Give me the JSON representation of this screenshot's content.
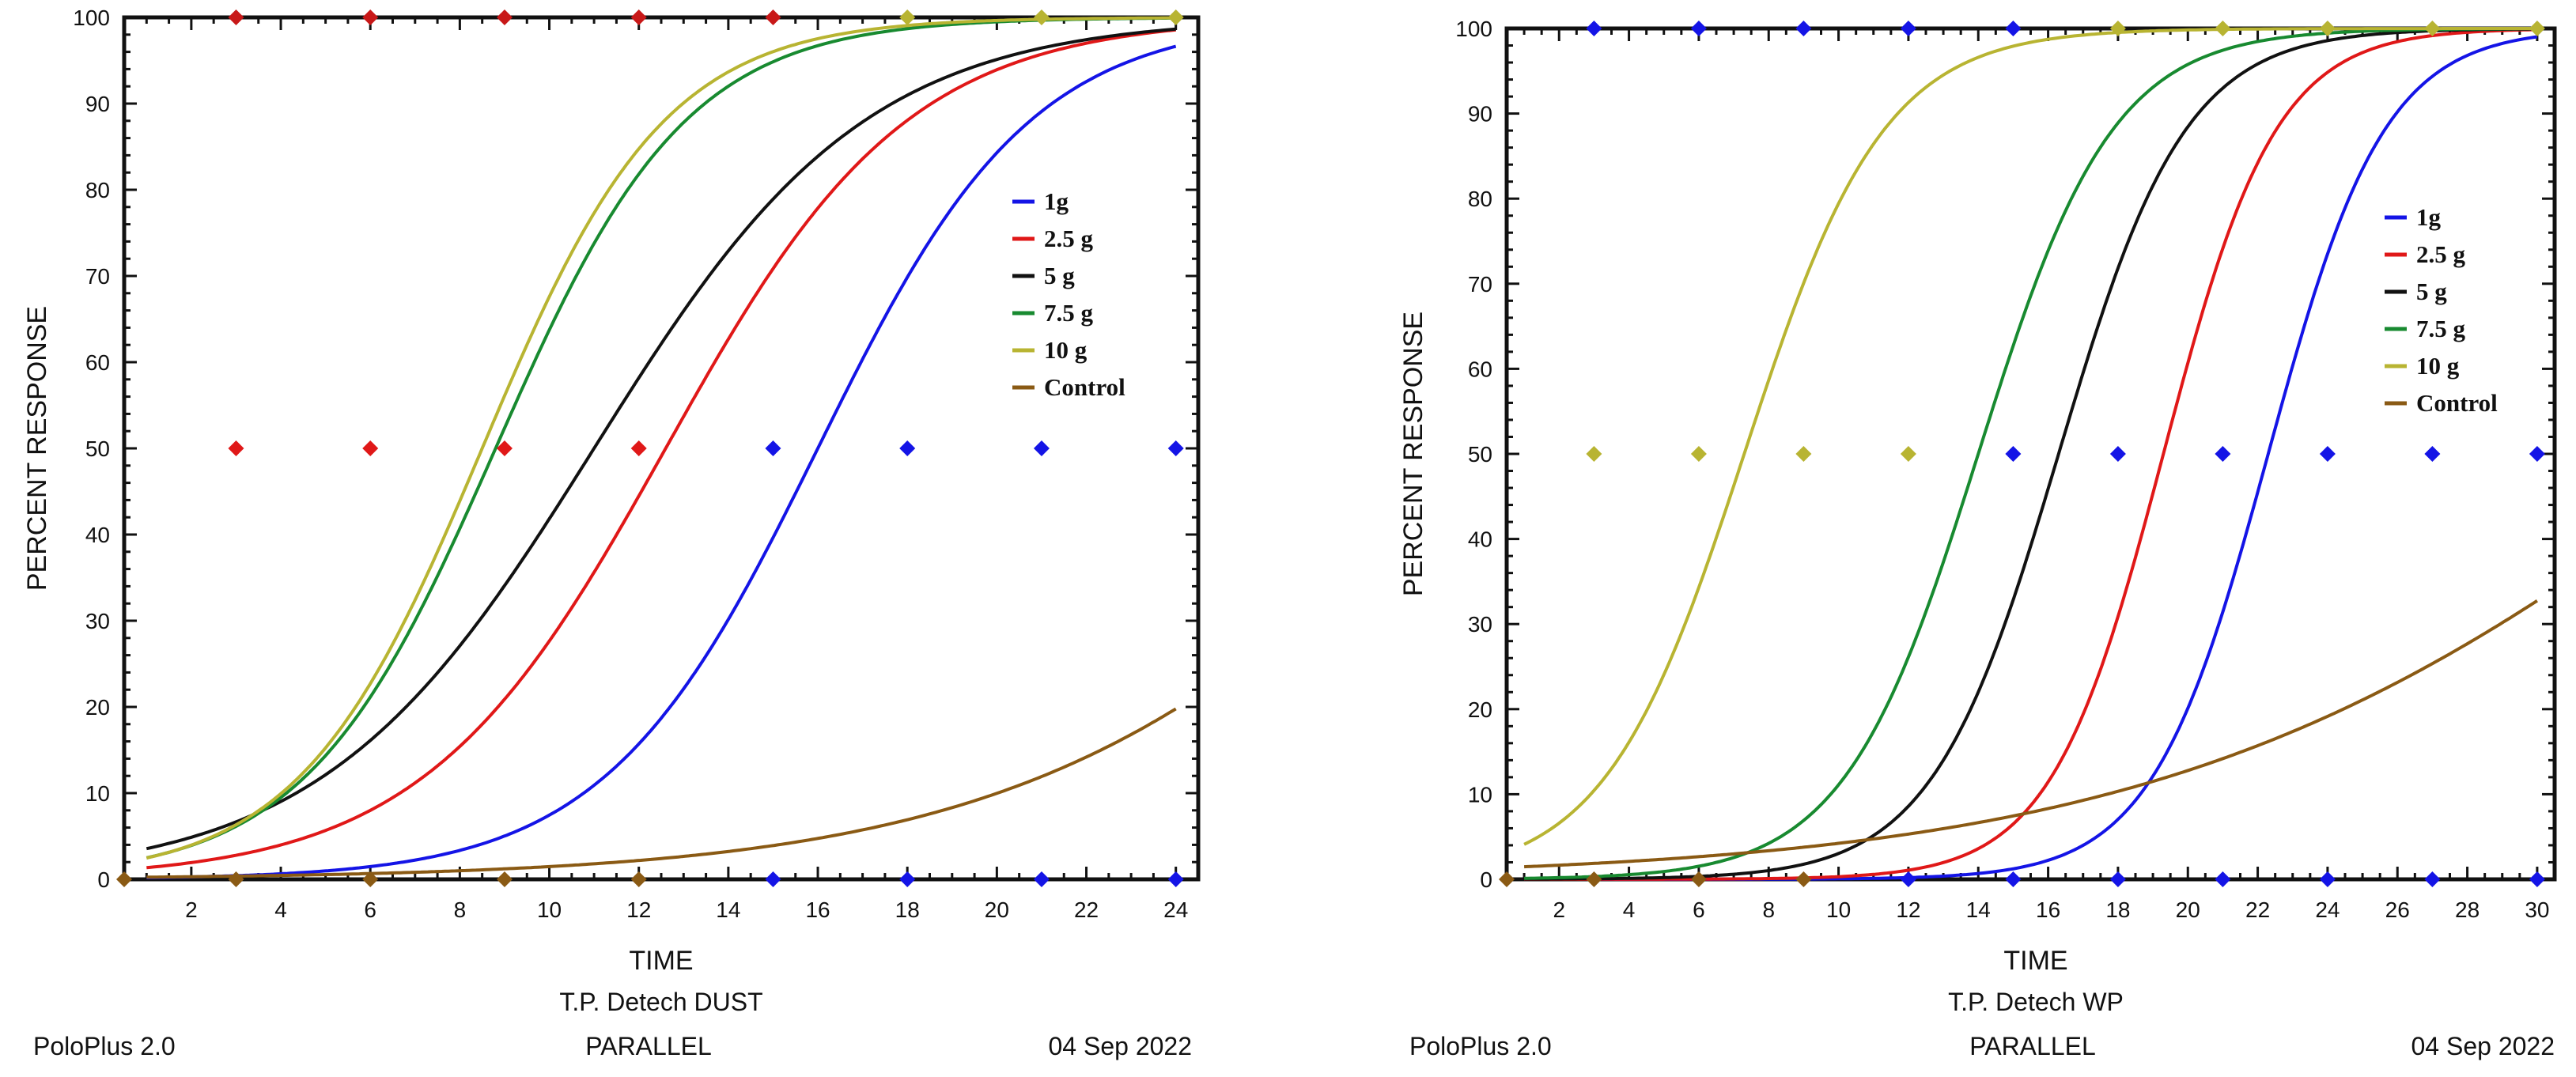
{
  "charts": [
    {
      "type": "line",
      "title": "T.P. Detech DUST",
      "xlabel": "TIME",
      "ylabel": "PERCENT  RESPONSE",
      "footer_left": "PoloPlus 2.0",
      "footer_center": "PARALLEL",
      "footer_right": "04 Sep 2022",
      "xlim": [
        0.5,
        24.5
      ],
      "ylim": [
        0,
        100
      ],
      "x_ticks": [
        2,
        4,
        6,
        8,
        10,
        12,
        14,
        16,
        18,
        20,
        22,
        24
      ],
      "y_ticks": [
        0,
        10,
        20,
        30,
        40,
        50,
        60,
        70,
        80,
        90,
        100
      ],
      "legend_position": "right",
      "series": [
        {
          "name": "1g",
          "color": "#1414e6",
          "x50": 16.0,
          "slope": 0.42
        },
        {
          "name": "2.5 g",
          "color": "#e01818",
          "x50": 12.6,
          "slope": 0.37
        },
        {
          "name": "5 g",
          "color": "#111111",
          "x50": 11.0,
          "slope": 0.33
        },
        {
          "name": "7.5 g",
          "color": "#188a30",
          "x50": 8.8,
          "slope": 0.47
        },
        {
          "name": "10 g",
          "color": "#b8b432",
          "x50": 8.5,
          "slope": 0.49
        },
        {
          "name": "Control",
          "color": "#8a5a14",
          "x50": 31.0,
          "slope": 0.2
        }
      ],
      "points": [
        {
          "x": 3,
          "y": 100,
          "color": "#c81818"
        },
        {
          "x": 6,
          "y": 100,
          "color": "#c81818"
        },
        {
          "x": 9,
          "y": 100,
          "color": "#c81818"
        },
        {
          "x": 12,
          "y": 100,
          "color": "#c81818"
        },
        {
          "x": 15,
          "y": 100,
          "color": "#c81818"
        },
        {
          "x": 18,
          "y": 100,
          "color": "#b8b432"
        },
        {
          "x": 21,
          "y": 100,
          "color": "#b8b432"
        },
        {
          "x": 24,
          "y": 100,
          "color": "#b8b432"
        },
        {
          "x": 3,
          "y": 50,
          "color": "#e01818"
        },
        {
          "x": 6,
          "y": 50,
          "color": "#e01818"
        },
        {
          "x": 9,
          "y": 50,
          "color": "#e01818"
        },
        {
          "x": 12,
          "y": 50,
          "color": "#e01818"
        },
        {
          "x": 15,
          "y": 50,
          "color": "#1414e6"
        },
        {
          "x": 18,
          "y": 50,
          "color": "#1414e6"
        },
        {
          "x": 21,
          "y": 50,
          "color": "#1414e6"
        },
        {
          "x": 24,
          "y": 50,
          "color": "#1414e6"
        },
        {
          "x": 0.5,
          "y": 0,
          "color": "#8a5a14"
        },
        {
          "x": 3,
          "y": 0,
          "color": "#8a5a14"
        },
        {
          "x": 6,
          "y": 0,
          "color": "#8a5a14"
        },
        {
          "x": 9,
          "y": 0,
          "color": "#8a5a14"
        },
        {
          "x": 12,
          "y": 0,
          "color": "#8a5a14"
        },
        {
          "x": 15,
          "y": 0,
          "color": "#1414e6"
        },
        {
          "x": 18,
          "y": 0,
          "color": "#1414e6"
        },
        {
          "x": 21,
          "y": 0,
          "color": "#1414e6"
        },
        {
          "x": 24,
          "y": 0,
          "color": "#1414e6"
        }
      ]
    },
    {
      "type": "line",
      "title": "T.P. Detech WP",
      "xlabel": "TIME",
      "ylabel": "PERCENT  RESPONSE",
      "footer_left": "PoloPlus 2.0",
      "footer_center": "PARALLEL",
      "footer_right": "04 Sep 2022",
      "xlim": [
        0.5,
        30.5
      ],
      "ylim": [
        0,
        100
      ],
      "x_ticks": [
        2,
        4,
        6,
        8,
        10,
        12,
        14,
        16,
        18,
        20,
        22,
        24,
        26,
        28,
        30
      ],
      "y_ticks": [
        0,
        10,
        20,
        30,
        40,
        50,
        60,
        70,
        80,
        90,
        100
      ],
      "legend_position": "right",
      "series": [
        {
          "name": "1g",
          "color": "#1414e6",
          "x50": 22.3,
          "slope": 0.6
        },
        {
          "name": "2.5 g",
          "color": "#e01818",
          "x50": 19.3,
          "slope": 0.62
        },
        {
          "name": "5 g",
          "color": "#111111",
          "x50": 16.3,
          "slope": 0.55
        },
        {
          "name": "7.5 g",
          "color": "#188a30",
          "x50": 14.0,
          "slope": 0.52
        },
        {
          "name": "10 g",
          "color": "#b8b432",
          "x50": 7.3,
          "slope": 0.5
        },
        {
          "name": "Control",
          "color": "#8a5a14",
          "x50": 36.0,
          "slope": 0.12
        }
      ],
      "points": [
        {
          "x": 3,
          "y": 100,
          "color": "#1414e6"
        },
        {
          "x": 6,
          "y": 100,
          "color": "#1414e6"
        },
        {
          "x": 9,
          "y": 100,
          "color": "#1414e6"
        },
        {
          "x": 12,
          "y": 100,
          "color": "#1414e6"
        },
        {
          "x": 15,
          "y": 100,
          "color": "#1414e6"
        },
        {
          "x": 18,
          "y": 100,
          "color": "#b8b432"
        },
        {
          "x": 21,
          "y": 100,
          "color": "#b8b432"
        },
        {
          "x": 24,
          "y": 100,
          "color": "#b8b432"
        },
        {
          "x": 27,
          "y": 100,
          "color": "#b8b432"
        },
        {
          "x": 30,
          "y": 100,
          "color": "#b8b432"
        },
        {
          "x": 3,
          "y": 50,
          "color": "#b8b432"
        },
        {
          "x": 6,
          "y": 50,
          "color": "#b8b432"
        },
        {
          "x": 9,
          "y": 50,
          "color": "#b8b432"
        },
        {
          "x": 12,
          "y": 50,
          "color": "#b8b432"
        },
        {
          "x": 15,
          "y": 50,
          "color": "#1414e6"
        },
        {
          "x": 18,
          "y": 50,
          "color": "#1414e6"
        },
        {
          "x": 21,
          "y": 50,
          "color": "#1414e6"
        },
        {
          "x": 24,
          "y": 50,
          "color": "#1414e6"
        },
        {
          "x": 27,
          "y": 50,
          "color": "#1414e6"
        },
        {
          "x": 30,
          "y": 50,
          "color": "#1414e6"
        },
        {
          "x": 0.5,
          "y": 0,
          "color": "#8a5a14"
        },
        {
          "x": 3,
          "y": 0,
          "color": "#8a5a14"
        },
        {
          "x": 6,
          "y": 0,
          "color": "#8a5a14"
        },
        {
          "x": 9,
          "y": 0,
          "color": "#8a5a14"
        },
        {
          "x": 12,
          "y": 0,
          "color": "#1414e6"
        },
        {
          "x": 15,
          "y": 0,
          "color": "#1414e6"
        },
        {
          "x": 18,
          "y": 0,
          "color": "#1414e6"
        },
        {
          "x": 21,
          "y": 0,
          "color": "#1414e6"
        },
        {
          "x": 24,
          "y": 0,
          "color": "#1414e6"
        },
        {
          "x": 27,
          "y": 0,
          "color": "#1414e6"
        },
        {
          "x": 30,
          "y": 0,
          "color": "#1414e6"
        }
      ]
    }
  ],
  "chart_data": [
    {
      "type": "line",
      "title": "T.P. Detech DUST",
      "xlabel": "TIME",
      "ylabel": "PERCENT  RESPONSE",
      "xlim": [
        0.5,
        24.5
      ],
      "ylim": [
        0,
        100
      ],
      "series_names": [
        "1g",
        "2.5 g",
        "5 g",
        "7.5 g",
        "10 g",
        "Control"
      ]
    },
    {
      "type": "line",
      "title": "T.P. Detech WP",
      "xlabel": "TIME",
      "ylabel": "PERCENT  RESPONSE",
      "xlim": [
        0.5,
        30.5
      ],
      "ylim": [
        0,
        100
      ],
      "series_names": [
        "1g",
        "2.5 g",
        "5 g",
        "7.5 g",
        "10 g",
        "Control"
      ]
    }
  ]
}
